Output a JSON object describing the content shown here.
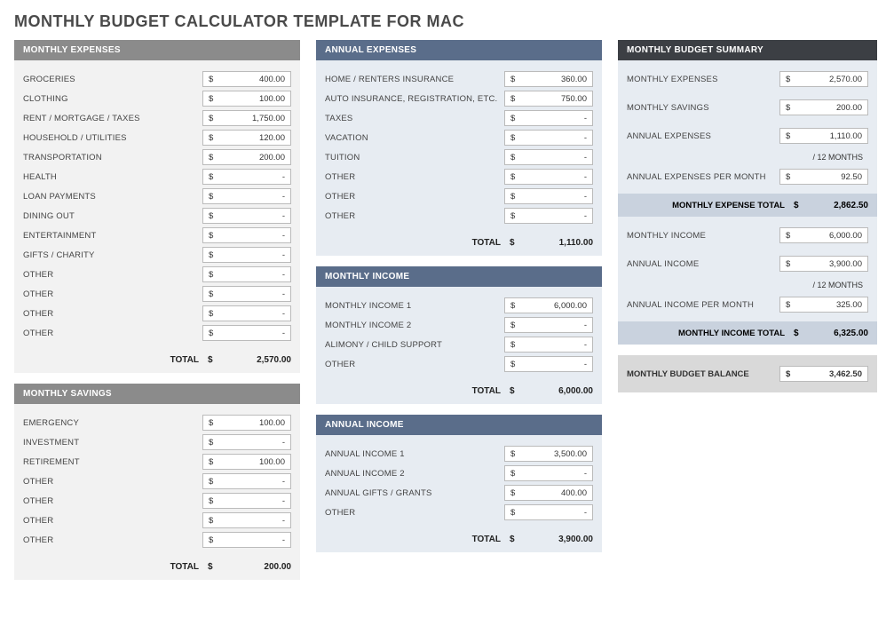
{
  "title": "MONTHLY BUDGET CALCULATOR TEMPLATE FOR MAC",
  "colors": {
    "hdr_gray": "#8b8b8b",
    "hdr_blue": "#5a6d8a",
    "hdr_black": "#3c3f44",
    "bg_gray": "#f2f2f2",
    "bg_blue": "#e7ecf2",
    "bg_light": "#d9d9d9",
    "summary_band": "#c9d2de"
  },
  "monthly_expenses": {
    "title": "MONTHLY EXPENSES",
    "items": [
      {
        "label": "GROCERIES",
        "value": "400.00"
      },
      {
        "label": "CLOTHING",
        "value": "100.00"
      },
      {
        "label": "RENT / MORTGAGE / TAXES",
        "value": "1,750.00"
      },
      {
        "label": "HOUSEHOLD / UTILITIES",
        "value": "120.00"
      },
      {
        "label": "TRANSPORTATION",
        "value": "200.00"
      },
      {
        "label": "HEALTH",
        "value": "-"
      },
      {
        "label": "LOAN PAYMENTS",
        "value": "-"
      },
      {
        "label": "DINING OUT",
        "value": "-"
      },
      {
        "label": "ENTERTAINMENT",
        "value": "-"
      },
      {
        "label": "GIFTS / CHARITY",
        "value": "-"
      },
      {
        "label": "OTHER",
        "value": "-"
      },
      {
        "label": "OTHER",
        "value": "-"
      },
      {
        "label": "OTHER",
        "value": "-"
      },
      {
        "label": "OTHER",
        "value": "-"
      }
    ],
    "total_label": "TOTAL",
    "total": "2,570.00"
  },
  "monthly_savings": {
    "title": "MONTHLY SAVINGS",
    "items": [
      {
        "label": "EMERGENCY",
        "value": "100.00"
      },
      {
        "label": "INVESTMENT",
        "value": "-"
      },
      {
        "label": "RETIREMENT",
        "value": "100.00"
      },
      {
        "label": "OTHER",
        "value": "-"
      },
      {
        "label": "OTHER",
        "value": "-"
      },
      {
        "label": "OTHER",
        "value": "-"
      },
      {
        "label": "OTHER",
        "value": "-"
      }
    ],
    "total_label": "TOTAL",
    "total": "200.00"
  },
  "annual_expenses": {
    "title": "ANNUAL EXPENSES",
    "items": [
      {
        "label": "HOME / RENTERS INSURANCE",
        "value": "360.00"
      },
      {
        "label": "AUTO INSURANCE, REGISTRATION, ETC.",
        "value": "750.00"
      },
      {
        "label": "TAXES",
        "value": "-"
      },
      {
        "label": "VACATION",
        "value": "-"
      },
      {
        "label": "TUITION",
        "value": "-"
      },
      {
        "label": "OTHER",
        "value": "-"
      },
      {
        "label": "OTHER",
        "value": "-"
      },
      {
        "label": "OTHER",
        "value": "-"
      }
    ],
    "total_label": "TOTAL",
    "total": "1,110.00"
  },
  "monthly_income": {
    "title": "MONTHLY INCOME",
    "items": [
      {
        "label": "MONTHLY INCOME 1",
        "value": "6,000.00"
      },
      {
        "label": "MONTHLY INCOME 2",
        "value": "-"
      },
      {
        "label": "ALIMONY / CHILD SUPPORT",
        "value": "-"
      },
      {
        "label": "OTHER",
        "value": "-"
      }
    ],
    "total_label": "TOTAL",
    "total": "6,000.00"
  },
  "annual_income": {
    "title": "ANNUAL INCOME",
    "items": [
      {
        "label": "ANNUAL INCOME 1",
        "value": "3,500.00"
      },
      {
        "label": "ANNUAL INCOME 2",
        "value": "-"
      },
      {
        "label": "ANNUAL GIFTS / GRANTS",
        "value": "400.00"
      },
      {
        "label": "OTHER",
        "value": "-"
      }
    ],
    "total_label": "TOTAL",
    "total": "3,900.00"
  },
  "summary": {
    "title": "MONTHLY BUDGET SUMMARY",
    "rows": {
      "monthly_expenses": {
        "label": "MONTHLY EXPENSES",
        "value": "2,570.00"
      },
      "monthly_savings": {
        "label": "MONTHLY SAVINGS",
        "value": "200.00"
      },
      "annual_expenses": {
        "label": "ANNUAL EXPENSES",
        "value": "1,110.00"
      },
      "per12_1": "/ 12 MONTHS",
      "annual_exp_per_month": {
        "label": "ANNUAL EXPENSES PER MONTH",
        "value": "92.50"
      },
      "expense_total": {
        "label": "MONTHLY EXPENSE TOTAL",
        "value": "2,862.50"
      },
      "monthly_income": {
        "label": "MONTHLY INCOME",
        "value": "6,000.00"
      },
      "annual_income": {
        "label": "ANNUAL INCOME",
        "value": "3,900.00"
      },
      "per12_2": "/ 12 MONTHS",
      "annual_inc_per_month": {
        "label": "ANNUAL INCOME PER MONTH",
        "value": "325.00"
      },
      "income_total": {
        "label": "MONTHLY INCOME TOTAL",
        "value": "6,325.00"
      }
    },
    "balance": {
      "label": "MONTHLY BUDGET BALANCE",
      "value": "3,462.50"
    }
  },
  "currency": "$"
}
